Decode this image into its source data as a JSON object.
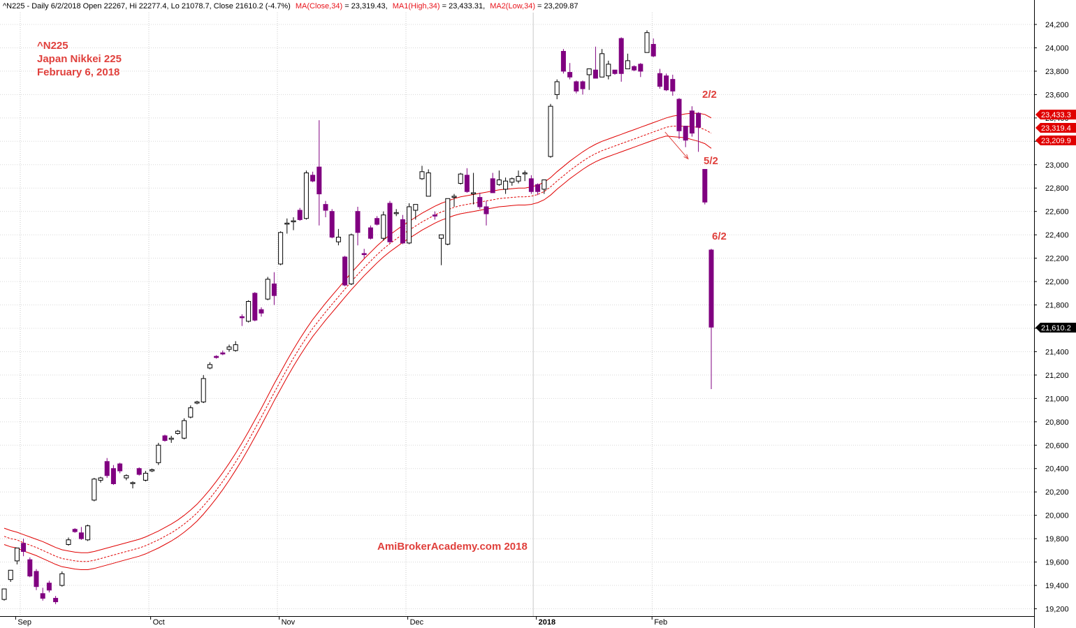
{
  "header": {
    "ticker_line": "^N225 - Daily 6/2/2018 Open 22267, Hi 22277.4, Lo 21078.7, Close 21610.2 (-4.7%)",
    "ma_close": "MA(Close,34)",
    "ma_close_value": " = 23,319.43,",
    "ma_high": "MA1(High,34)",
    "ma_high_value": " = 23,433.31,",
    "ma_low": "MA2(Low,34)",
    "ma_low_value": " = 23,209.87"
  },
  "annotations": {
    "title1": "^N225",
    "title2": "Japan Nikkei 225",
    "title3": "February 6, 2018",
    "watermark": "AmiBrokerAcademy.com 2018",
    "label_2_2": "2/2",
    "label_5_2": "5/2",
    "label_6_2": "6/2"
  },
  "price_tags": [
    {
      "label": "23,433.3",
      "value": 23433.3,
      "color": "#e00000"
    },
    {
      "label": "23,319.4",
      "value": 23319.4,
      "color": "#e00000"
    },
    {
      "label": "23,209.9",
      "value": 23209.9,
      "color": "#e00000"
    },
    {
      "label": "21,610.2",
      "value": 21610.2,
      "color": "#000000"
    }
  ],
  "colors": {
    "down": "#800080",
    "up_fill": "#ffffff",
    "ma": "#e00000",
    "grid": "#d8d8d8",
    "note": "#e0403c"
  },
  "chart_data": {
    "type": "candlestick",
    "ylim": [
      19150,
      24300
    ],
    "yticks": [
      19200,
      19400,
      19600,
      19800,
      20000,
      20200,
      20400,
      20600,
      20800,
      21000,
      21200,
      21400,
      21600,
      21800,
      22000,
      22200,
      22400,
      22600,
      22800,
      23000,
      23200,
      23400,
      23600,
      23800,
      24000,
      24200
    ],
    "month_labels": [
      {
        "label": "Sep",
        "index": 2
      },
      {
        "label": "Oct",
        "index": 23
      },
      {
        "label": "Nov",
        "index": 43
      },
      {
        "label": "Dec",
        "index": 63
      },
      {
        "label": "2018",
        "index": 83
      },
      {
        "label": "Feb",
        "index": 101
      }
    ],
    "grid_lines": [
      {
        "index": 2.5,
        "style": "dotted"
      },
      {
        "index": 22.5,
        "style": "dotted"
      },
      {
        "index": 42.5,
        "style": "dotted"
      },
      {
        "index": 62.5,
        "style": "dotted"
      },
      {
        "index": 82.3,
        "style": "solid"
      },
      {
        "index": 100.8,
        "style": "dotted"
      }
    ],
    "candles": [
      [
        19280,
        19370,
        19270,
        19330
      ],
      [
        19450,
        19530,
        19430,
        19510
      ],
      [
        19610,
        19720,
        19580,
        19680
      ],
      [
        19760,
        19690,
        19650,
        19800
      ],
      [
        19620,
        19480,
        19470,
        19640
      ],
      [
        19520,
        19390,
        19360,
        19540
      ],
      [
        19330,
        19290,
        19270,
        19380
      ],
      [
        19420,
        19360,
        19340,
        19440
      ],
      [
        19290,
        19260,
        19240,
        19310
      ],
      [
        19400,
        19500,
        19390,
        19520
      ],
      [
        19750,
        19790,
        19740,
        19810
      ],
      [
        19880,
        19860,
        19850,
        19890
      ],
      [
        19850,
        19800,
        19790,
        19900
      ],
      [
        19790,
        19910,
        19780,
        19920
      ],
      [
        20130,
        20310,
        20120,
        20320
      ],
      [
        20300,
        20320,
        20280,
        20330
      ],
      [
        20460,
        20340,
        20320,
        20490
      ],
      [
        20400,
        20270,
        20260,
        20430
      ],
      [
        20440,
        20380,
        20360,
        20450
      ],
      [
        20320,
        20340,
        20300,
        20350
      ],
      [
        20280,
        20280,
        20230,
        20290
      ],
      [
        20400,
        20350,
        20340,
        20410
      ],
      [
        20300,
        20360,
        20290,
        20380
      ],
      [
        20380,
        20390,
        20370,
        20400
      ],
      [
        20450,
        20600,
        20430,
        20620
      ],
      [
        20680,
        20640,
        20630,
        20690
      ],
      [
        20650,
        20660,
        20620,
        20680
      ],
      [
        20700,
        20720,
        20690,
        20730
      ],
      [
        20660,
        20810,
        20650,
        20830
      ],
      [
        20840,
        20920,
        20830,
        20940
      ],
      [
        20960,
        20970,
        20950,
        20980
      ],
      [
        20970,
        21170,
        20960,
        21200
      ],
      [
        21260,
        21290,
        21250,
        21310
      ],
      [
        21360,
        21350,
        21340,
        21370
      ],
      [
        21390,
        21380,
        21370,
        21410
      ],
      [
        21420,
        21440,
        21400,
        21460
      ],
      [
        21410,
        21460,
        21400,
        21490
      ],
      [
        21700,
        21690,
        21620,
        21720
      ],
      [
        21660,
        21830,
        21650,
        21840
      ],
      [
        21900,
        21670,
        21660,
        21910
      ],
      [
        21760,
        21730,
        21700,
        21780
      ],
      [
        21850,
        22020,
        21840,
        22040
      ],
      [
        21980,
        21880,
        21800,
        22080
      ],
      [
        22150,
        22420,
        22140,
        22430
      ],
      [
        22500,
        22500,
        22410,
        22540
      ],
      [
        22520,
        22520,
        22440,
        22550
      ],
      [
        22610,
        22530,
        22520,
        22630
      ],
      [
        22540,
        22930,
        22530,
        22950
      ],
      [
        22910,
        22860,
        22850,
        22940
      ],
      [
        22980,
        22750,
        22480,
        23380
      ],
      [
        22660,
        22610,
        22550,
        22690
      ],
      [
        22600,
        22380,
        22370,
        22620
      ],
      [
        22340,
        22380,
        22310,
        22450
      ],
      [
        22210,
        21970,
        21960,
        22220
      ],
      [
        21980,
        22400,
        21970,
        22410
      ],
      [
        22600,
        22420,
        22310,
        22640
      ],
      [
        22240,
        22230,
        22200,
        22280
      ],
      [
        22460,
        22370,
        22360,
        22480
      ],
      [
        22540,
        22490,
        22480,
        22560
      ],
      [
        22370,
        22570,
        22350,
        22600
      ],
      [
        22670,
        22340,
        22330,
        22690
      ],
      [
        22590,
        22590,
        22560,
        22620
      ],
      [
        22530,
        22330,
        22320,
        22570
      ],
      [
        22330,
        22640,
        22320,
        22670
      ],
      [
        22610,
        22660,
        22530,
        22660
      ],
      [
        22880,
        22940,
        22870,
        22990
      ],
      [
        22730,
        22930,
        22730,
        22960
      ],
      [
        22570,
        22560,
        22530,
        22600
      ],
      [
        22370,
        22400,
        22140,
        22370
      ],
      [
        22320,
        22710,
        22310,
        22710
      ],
      [
        22730,
        22730,
        22640,
        22750
      ],
      [
        22840,
        22920,
        22830,
        22930
      ],
      [
        22910,
        22770,
        22760,
        22970
      ],
      [
        22750,
        22760,
        22660,
        22930
      ],
      [
        22720,
        22640,
        22620,
        22760
      ],
      [
        22640,
        22580,
        22480,
        22690
      ],
      [
        22880,
        22760,
        22760,
        22930
      ],
      [
        22830,
        22870,
        22820,
        22950
      ],
      [
        22790,
        22860,
        22750,
        22890
      ],
      [
        22850,
        22880,
        22820,
        22890
      ],
      [
        22860,
        22900,
        22840,
        22950
      ],
      [
        22930,
        22930,
        22860,
        22950
      ],
      [
        22880,
        22770,
        22750,
        22910
      ],
      [
        22830,
        22770,
        22740,
        22840
      ],
      [
        22790,
        22870,
        22750,
        22870
      ],
      [
        23070,
        23500,
        23060,
        23520
      ],
      [
        23600,
        23710,
        23560,
        23730
      ],
      [
        23970,
        23800,
        23780,
        23990
      ],
      [
        23790,
        23750,
        23730,
        23870
      ],
      [
        23710,
        23630,
        23610,
        23720
      ],
      [
        23710,
        23650,
        23600,
        23720
      ],
      [
        23770,
        23820,
        23640,
        23800
      ],
      [
        23810,
        23740,
        23740,
        24010
      ],
      [
        23750,
        23950,
        23750,
        23990
      ],
      [
        23760,
        23860,
        23730,
        23890
      ],
      [
        23810,
        23780,
        23770,
        23810
      ],
      [
        24080,
        23780,
        23710,
        24090
      ],
      [
        23820,
        23890,
        23820,
        23950
      ],
      [
        23840,
        23810,
        23800,
        23850
      ],
      [
        23860,
        23800,
        23750,
        23870
      ],
      [
        23960,
        24130,
        23960,
        24150
      ],
      [
        24030,
        23930,
        23920,
        24080
      ],
      [
        23780,
        23670,
        23650,
        23820
      ],
      [
        23760,
        23640,
        23630,
        23780
      ],
      [
        23730,
        23630,
        23590,
        23770
      ],
      [
        23560,
        23290,
        23220,
        23570
      ],
      [
        23330,
        23210,
        23150,
        23330
      ],
      [
        23460,
        23270,
        23240,
        23500
      ],
      [
        23440,
        23320,
        23110,
        23450
      ],
      [
        22960,
        22680,
        22660,
        22960
      ],
      [
        22270,
        21610,
        21080,
        22280
      ]
    ],
    "ma_close": [
      19820,
      19800,
      19790,
      19765,
      19745,
      19725,
      19700,
      19675,
      19650,
      19630,
      19620,
      19610,
      19605,
      19605,
      19615,
      19630,
      19645,
      19660,
      19675,
      19690,
      19705,
      19720,
      19740,
      19765,
      19790,
      19820,
      19850,
      19885,
      19925,
      19970,
      20020,
      20080,
      20145,
      20215,
      20290,
      20370,
      20455,
      20545,
      20640,
      20740,
      20840,
      20945,
      21050,
      21150,
      21250,
      21345,
      21435,
      21520,
      21600,
      21670,
      21740,
      21805,
      21870,
      21935,
      22000,
      22060,
      22120,
      22175,
      22230,
      22280,
      22325,
      22365,
      22405,
      22440,
      22475,
      22510,
      22540,
      22570,
      22595,
      22615,
      22635,
      22650,
      22660,
      22670,
      22680,
      22690,
      22700,
      22710,
      22715,
      22720,
      22725,
      22725,
      22730,
      22745,
      22770,
      22810,
      22860,
      22905,
      22950,
      22990,
      23030,
      23065,
      23095,
      23120,
      23140,
      23160,
      23180,
      23200,
      23220,
      23240,
      23260,
      23280,
      23300,
      23320,
      23330,
      23330,
      23330,
      23325,
      23320,
      23300,
      23270
    ],
    "ma_high": [
      19890,
      19870,
      19855,
      19835,
      19815,
      19795,
      19775,
      19750,
      19725,
      19705,
      19695,
      19685,
      19680,
      19680,
      19690,
      19705,
      19720,
      19735,
      19750,
      19765,
      19780,
      19795,
      19815,
      19840,
      19865,
      19895,
      19925,
      19960,
      20000,
      20045,
      20095,
      20155,
      20220,
      20290,
      20365,
      20445,
      20530,
      20620,
      20715,
      20815,
      20915,
      21020,
      21125,
      21225,
      21325,
      21420,
      21510,
      21595,
      21675,
      21745,
      21815,
      21880,
      21945,
      22010,
      22075,
      22135,
      22195,
      22250,
      22305,
      22355,
      22400,
      22440,
      22480,
      22515,
      22550,
      22585,
      22615,
      22645,
      22670,
      22690,
      22710,
      22725,
      22735,
      22745,
      22755,
      22765,
      22775,
      22785,
      22790,
      22795,
      22800,
      22800,
      22810,
      22825,
      22850,
      22890,
      22940,
      22985,
      23030,
      23070,
      23110,
      23145,
      23175,
      23200,
      23220,
      23240,
      23260,
      23280,
      23300,
      23320,
      23340,
      23360,
      23380,
      23400,
      23415,
      23425,
      23435,
      23440,
      23440,
      23430,
      23400
    ],
    "ma_low": [
      19750,
      19730,
      19720,
      19695,
      19675,
      19655,
      19630,
      19605,
      19580,
      19560,
      19550,
      19540,
      19535,
      19535,
      19545,
      19560,
      19575,
      19590,
      19605,
      19620,
      19635,
      19650,
      19670,
      19695,
      19720,
      19750,
      19780,
      19815,
      19855,
      19900,
      19950,
      20010,
      20075,
      20145,
      20220,
      20300,
      20385,
      20475,
      20570,
      20670,
      20770,
      20875,
      20980,
      21080,
      21180,
      21275,
      21365,
      21450,
      21530,
      21600,
      21670,
      21735,
      21800,
      21865,
      21930,
      21990,
      22050,
      22105,
      22160,
      22210,
      22255,
      22295,
      22335,
      22370,
      22405,
      22440,
      22470,
      22500,
      22525,
      22545,
      22565,
      22580,
      22590,
      22600,
      22610,
      22620,
      22630,
      22640,
      22645,
      22650,
      22655,
      22655,
      22660,
      22675,
      22700,
      22740,
      22790,
      22835,
      22880,
      22920,
      22960,
      22995,
      23025,
      23050,
      23070,
      23090,
      23110,
      23130,
      23150,
      23170,
      23190,
      23210,
      23230,
      23245,
      23240,
      23235,
      23230,
      23215,
      23200,
      23180,
      23140
    ],
    "trend_arrow": {
      "from": [
        102.8,
        23280
      ],
      "to": [
        106.4,
        23050
      ]
    }
  }
}
